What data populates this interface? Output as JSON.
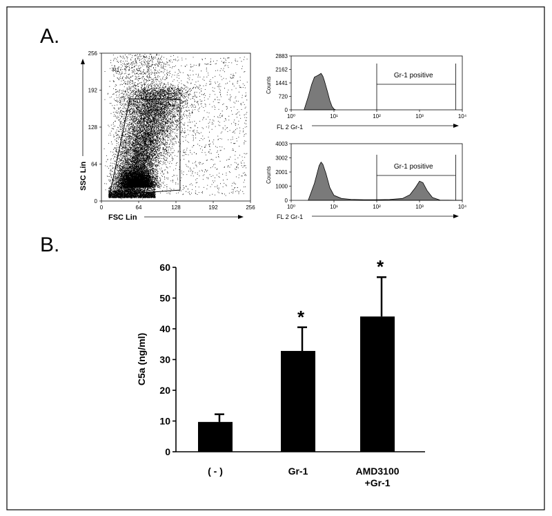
{
  "panel_a": {
    "label": "A."
  },
  "panel_b": {
    "label": "B."
  },
  "chart_data": [
    {
      "type": "scatter",
      "xlabel": "FSC Lin",
      "ylabel": "SSC Lin",
      "xticks": [
        "0",
        "64",
        "128",
        "192",
        "256"
      ],
      "yticks": [
        "0",
        "64",
        "128",
        "192",
        "256"
      ],
      "xlim": [
        0,
        256
      ],
      "ylim": [
        0,
        256
      ],
      "gate_label": "R1",
      "gate_polygon": [
        [
          14,
          10
        ],
        [
          49,
          177
        ],
        [
          135,
          176
        ],
        [
          135,
          19
        ]
      ]
    },
    {
      "type": "area",
      "xlabel": "FL 2 Gr-1",
      "ylabel": "Counts",
      "xscale": "log",
      "xticks": [
        "10⁰",
        "10¹",
        "10²",
        "10³",
        "10⁴"
      ],
      "yticks": [
        "0",
        "720",
        "1441",
        "2162",
        "2883"
      ],
      "xlim": [
        1,
        10000
      ],
      "ylim": [
        0,
        2883
      ],
      "gate_label": "Gr-1 positive",
      "gate_range": [
        100,
        7000
      ],
      "x": [
        2.0,
        2.5,
        3.0,
        3.5,
        4.0,
        4.5,
        5.0,
        5.5,
        6.0,
        7.0,
        8.0,
        9.0,
        10.0,
        11.0
      ],
      "y": [
        0,
        700,
        1350,
        1750,
        1820,
        1880,
        1950,
        1800,
        1550,
        1000,
        500,
        180,
        40,
        0
      ]
    },
    {
      "type": "area",
      "xlabel": "FL 2 Gr-1",
      "ylabel": "Counts",
      "xscale": "log",
      "xticks": [
        "10⁰",
        "10¹",
        "10²",
        "10³",
        "10⁴"
      ],
      "yticks": [
        "0",
        "1000",
        "2001",
        "3002",
        "4003"
      ],
      "xlim": [
        1,
        10000
      ],
      "ylim": [
        0,
        4003
      ],
      "gate_label": "Gr-1 positive",
      "gate_range": [
        100,
        7000
      ],
      "x": [
        2.5,
        3.5,
        4.5,
        5.0,
        5.5,
        6.5,
        8.0,
        10,
        15,
        25,
        50,
        100,
        200,
        400,
        600,
        800,
        1000,
        1200,
        1500,
        2000,
        3000,
        10000
      ],
      "y": [
        0,
        1200,
        2450,
        2700,
        2550,
        1900,
        900,
        350,
        130,
        70,
        40,
        40,
        60,
        130,
        400,
        900,
        1350,
        1250,
        700,
        200,
        20,
        0
      ]
    },
    {
      "type": "bar",
      "ylabel": "C5a (ng/ml)",
      "categories": [
        "( - )",
        "Gr-1",
        "AMD3100\n+Gr-1"
      ],
      "values": [
        9.7,
        32.8,
        44.0
      ],
      "errors": [
        2.5,
        7.7,
        12.8
      ],
      "annotations": [
        "",
        "*",
        "*"
      ],
      "yticks": [
        "0",
        "10",
        "20",
        "30",
        "40",
        "50",
        "60"
      ],
      "ylim": [
        0,
        60
      ]
    }
  ]
}
